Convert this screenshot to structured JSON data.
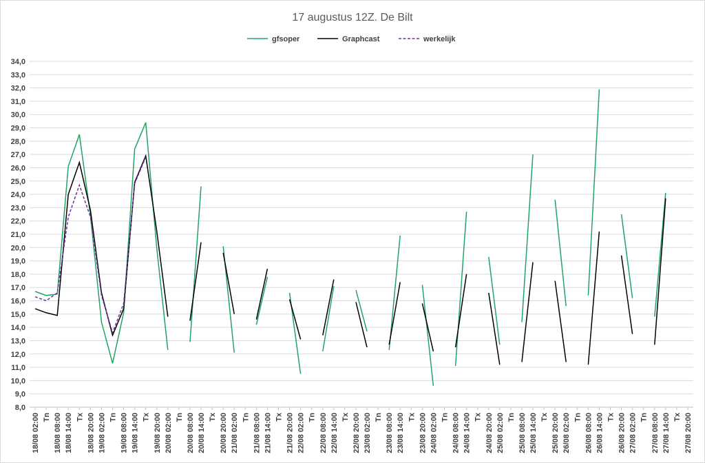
{
  "chart_data": {
    "type": "line",
    "title": "17 augustus 12Z. De Bilt",
    "legend_position": "top",
    "grid": true,
    "ylim": [
      8,
      34
    ],
    "y_step": 1,
    "y_decimal_separator": ",",
    "categories": [
      "18/08 02:00",
      "Tn",
      "18/08 08:00",
      "18/08 14:00",
      "Tx",
      "18/08 20:00",
      "19/08 02:00",
      "Tn",
      "19/08 08:00",
      "19/08 14:00",
      "Tx",
      "19/08 20:00",
      "20/08 02:00",
      "Tn",
      "20/08 08:00",
      "20/08 14:00",
      "Tx",
      "20/08 20:00",
      "21/08 02:00",
      "Tn",
      "21/08 08:00",
      "21/08 14:00",
      "Tx",
      "21/08 20:00",
      "22/08 02:00",
      "Tn",
      "22/08 08:00",
      "22/08 14:00",
      "Tx",
      "22/08 20:00",
      "23/08 02:00",
      "Tn",
      "23/08 08:00",
      "23/08 14:00",
      "Tx",
      "23/08 20:00",
      "24/08 02:00",
      "Tn",
      "24/08 08:00",
      "24/08 14:00",
      "Tx",
      "24/08 20:00",
      "25/08 02:00",
      "Tn",
      "25/08 08:00",
      "25/08 14:00",
      "Tx",
      "25/08 20:00",
      "26/08 02:00",
      "Tn",
      "26/08 08:00",
      "26/08 14:00",
      "Tx",
      "26/08 20:00",
      "27/08 02:00",
      "Tn",
      "27/08 08:00",
      "27/08 14:00",
      "Tx",
      "27/08 20:00"
    ],
    "series": [
      {
        "name": "gfsoper",
        "color": "#21a366",
        "dash": "solid",
        "values": [
          16.7,
          16.4,
          16.5,
          26.1,
          28.5,
          22.4,
          14.4,
          11.3,
          15.1,
          27.4,
          29.4,
          19.9,
          12.3,
          null,
          12.9,
          24.6,
          null,
          20.1,
          12.1,
          null,
          14.2,
          17.8,
          null,
          16.6,
          10.5,
          null,
          12.2,
          17.1,
          null,
          16.8,
          13.7,
          null,
          12.3,
          20.9,
          null,
          17.2,
          9.6,
          null,
          11.1,
          22.7,
          null,
          19.3,
          12.7,
          null,
          14.4,
          27.0,
          null,
          23.6,
          15.6,
          null,
          16.4,
          31.9,
          null,
          22.5,
          16.2,
          null,
          14.8,
          24.1,
          null,
          null
        ]
      },
      {
        "name": "Graphcast",
        "color": "#000000",
        "dash": "solid",
        "values": [
          15.4,
          15.1,
          14.9,
          24.0,
          26.4,
          22.8,
          16.6,
          13.4,
          15.4,
          24.9,
          26.9,
          21.2,
          14.8,
          null,
          14.5,
          20.4,
          null,
          19.6,
          15.0,
          null,
          14.6,
          18.4,
          null,
          16.1,
          13.1,
          null,
          13.4,
          17.6,
          null,
          15.9,
          12.5,
          null,
          12.7,
          17.4,
          null,
          15.8,
          12.2,
          null,
          12.5,
          18.0,
          null,
          16.6,
          11.2,
          null,
          11.4,
          18.9,
          null,
          17.5,
          11.4,
          null,
          11.2,
          21.2,
          null,
          19.4,
          13.5,
          null,
          12.7,
          23.7,
          null,
          null
        ]
      },
      {
        "name": "werkelijk",
        "color": "#7030a0",
        "dash": "dashed",
        "values": [
          16.3,
          16.0,
          16.6,
          22.3,
          24.7,
          22.3,
          16.4,
          13.6,
          15.8,
          24.8,
          26.8,
          null,
          null,
          null,
          null,
          null,
          null,
          null,
          null,
          null,
          null,
          null,
          null,
          null,
          null,
          null,
          null,
          null,
          null,
          null,
          null,
          null,
          null,
          null,
          null,
          null,
          null,
          null,
          null,
          null,
          null,
          null,
          null,
          null,
          null,
          null,
          null,
          null,
          null,
          null,
          null,
          null,
          null,
          null,
          null,
          null,
          null,
          null,
          null,
          null
        ]
      }
    ]
  }
}
